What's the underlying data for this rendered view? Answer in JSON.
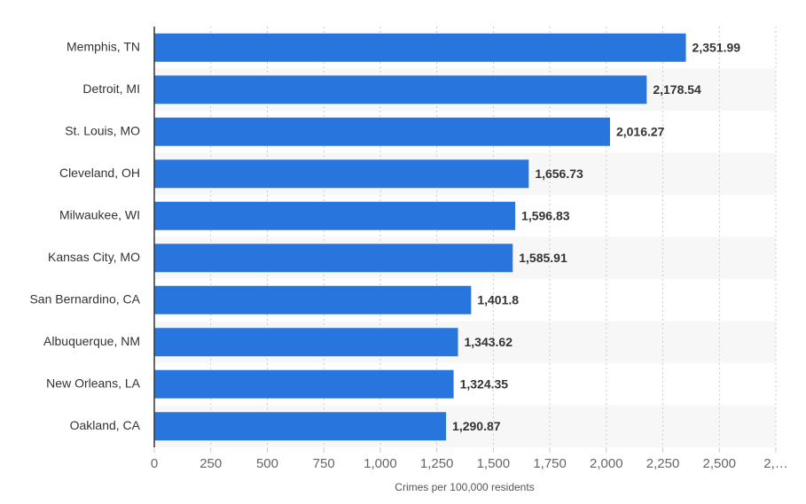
{
  "chart_data": {
    "type": "bar",
    "orientation": "horizontal",
    "categories": [
      "Memphis, TN",
      "Detroit, MI",
      "St. Louis, MO",
      "Cleveland, OH",
      "Milwaukee, WI",
      "Kansas City, MO",
      "San Bernardino, CA",
      "Albuquerque, NM",
      "New Orleans, LA",
      "Oakland, CA"
    ],
    "values": [
      2351.99,
      2178.54,
      2016.27,
      1656.73,
      1596.83,
      1585.91,
      1401.8,
      1343.62,
      1324.35,
      1290.87
    ],
    "value_labels": [
      "2,351.99",
      "2,178.54",
      "2,016.27",
      "1,656.73",
      "1,596.83",
      "1,585.91",
      "1,401.8",
      "1,343.62",
      "1,324.35",
      "1,290.87"
    ],
    "color": "#2876dd",
    "xlabel": "Crimes per 100,000 residents",
    "xlim": [
      0,
      2750
    ],
    "xticks": [
      0,
      250,
      500,
      750,
      {
        "value": 1000,
        "label": "1,000"
      },
      {
        "value": 1250,
        "label": "1,250"
      },
      {
        "value": 1500,
        "label": "1,500"
      },
      {
        "value": 1750,
        "label": "1,750"
      },
      {
        "value": 2000,
        "label": "2,000"
      },
      {
        "value": 2250,
        "label": "2,250"
      },
      {
        "value": 2500,
        "label": "2,500"
      },
      {
        "value": 2750,
        "label": "2,…"
      }
    ],
    "grid": true
  }
}
